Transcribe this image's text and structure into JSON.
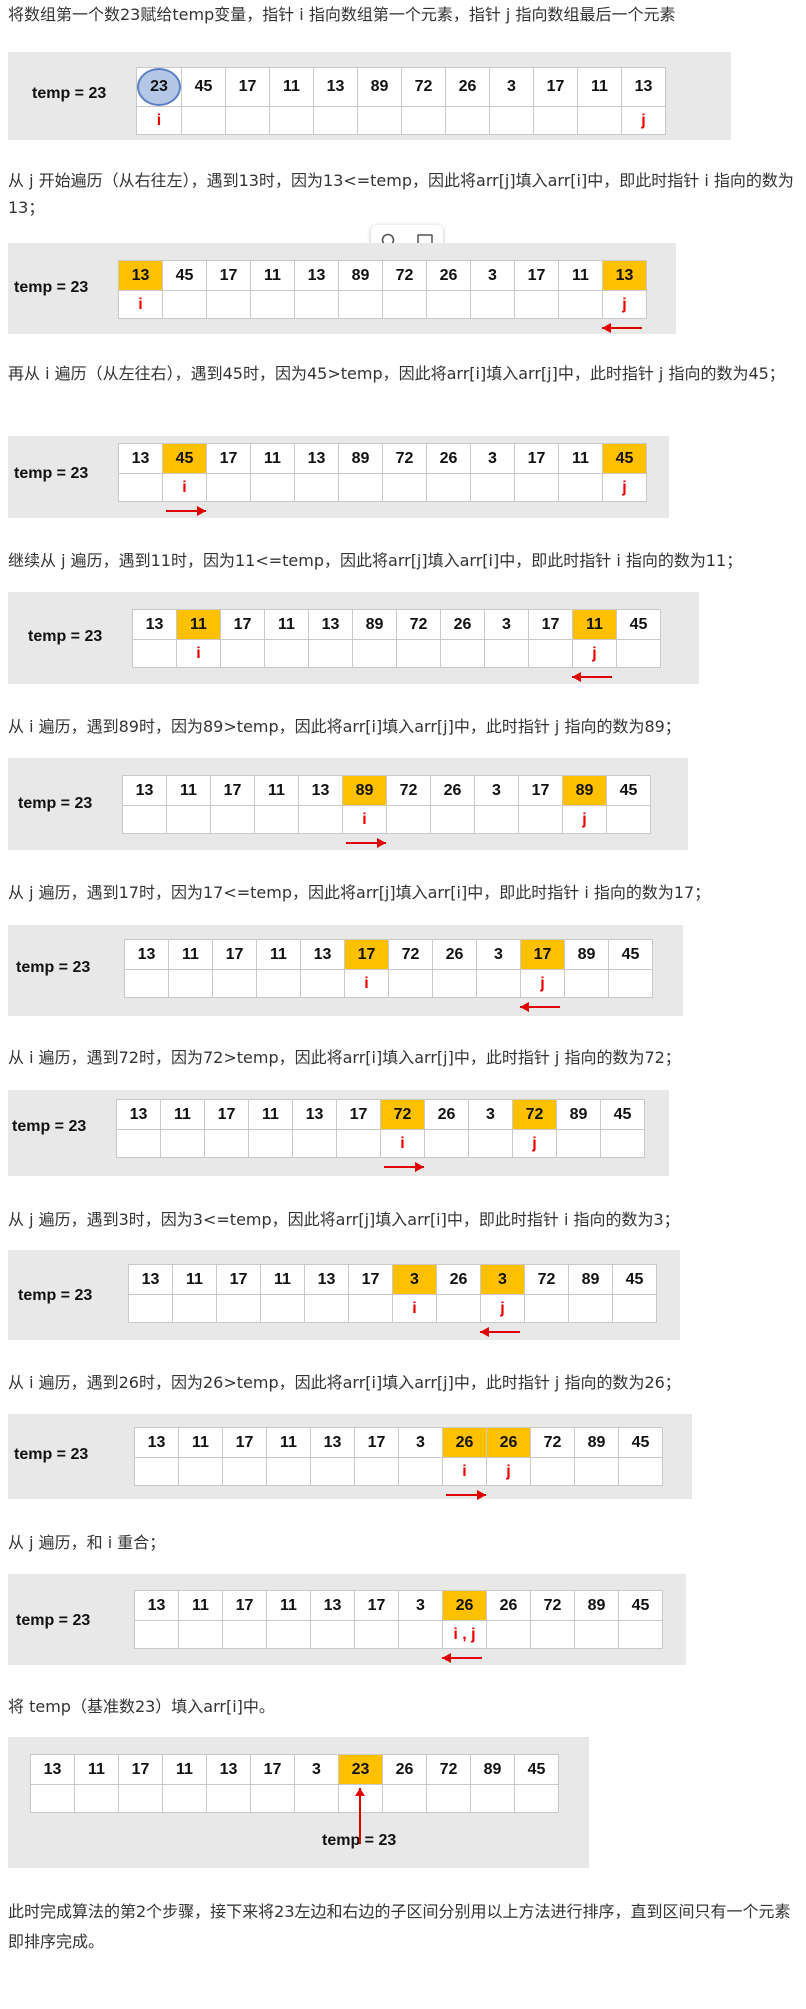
{
  "texts": {
    "t1": "将数组第一个数23赋给temp变量，指针 i 指向数组第一个元素，指针 j 指向数组最后一个元素",
    "t2": "从 j 开始遍历（从右往左），遇到13时，因为13<=temp，因此将arr[j]填入arr[i]中，即此时指针 i 指向的数为13；",
    "t3": "再从 i 遍历（从左往右），遇到45时，因为45>temp，因此将arr[i]填入arr[j]中，此时指针 j 指向的数为45；",
    "t4": "继续从 j 遍历，遇到11时，因为11<=temp，因此将arr[j]填入arr[i]中，即此时指针 i 指向的数为11；",
    "t5": "从 i 遍历，遇到89时，因为89>temp，因此将arr[i]填入arr[j]中，此时指针 j 指向的数为89；",
    "t6": "从 j 遍历，遇到17时，因为17<=temp，因此将arr[j]填入arr[i]中，即此时指针 i 指向的数为17；",
    "t7": "从 i 遍历，遇到72时，因为72>temp，因此将arr[i]填入arr[j]中，此时指针 j 指向的数为72；",
    "t8": "从 j 遍历，遇到3时，因为3<=temp，因此将arr[j]填入arr[i]中，即此时指针 i 指向的数为3；",
    "t9": "从 i 遍历，遇到26时，因为26>temp，因此将arr[i]填入arr[j]中，此时指针 j 指向的数为26；",
    "t10": "从 j 遍历，和 i 重合；",
    "t11": "将 temp（基准数23）填入arr[i]中。",
    "t12": "此时完成算法的第2个步骤，接下来将23左边和右边的子区间分别用以上方法进行排序，直到区间只有一个元素即排序完成。"
  },
  "temp_label": "temp = 23",
  "steps": [
    {
      "values": [
        "23",
        "45",
        "17",
        "11",
        "13",
        "89",
        "72",
        "26",
        "3",
        "17",
        "11",
        "13"
      ],
      "highlight": [],
      "circle": [
        0
      ],
      "pointers": [
        [
          "0",
          "i"
        ],
        [
          "11",
          "j"
        ]
      ],
      "arrow": ""
    },
    {
      "values": [
        "13",
        "45",
        "17",
        "11",
        "13",
        "89",
        "72",
        "26",
        "3",
        "17",
        "11",
        "13"
      ],
      "highlight": [
        0,
        11
      ],
      "circle": [],
      "pointers": [
        [
          "0",
          "i"
        ],
        [
          "11",
          "j"
        ]
      ],
      "arrow": "left"
    },
    {
      "values": [
        "13",
        "45",
        "17",
        "11",
        "13",
        "89",
        "72",
        "26",
        "3",
        "17",
        "11",
        "45"
      ],
      "highlight": [
        1,
        11
      ],
      "circle": [],
      "pointers": [
        [
          "1",
          "i"
        ],
        [
          "11",
          "j"
        ]
      ],
      "arrow": "right"
    },
    {
      "values": [
        "13",
        "11",
        "17",
        "11",
        "13",
        "89",
        "72",
        "26",
        "3",
        "17",
        "11",
        "45"
      ],
      "highlight": [
        1,
        10
      ],
      "circle": [],
      "pointers": [
        [
          "1",
          "i"
        ],
        [
          "10",
          "j"
        ]
      ],
      "arrow": "left"
    },
    {
      "values": [
        "13",
        "11",
        "17",
        "11",
        "13",
        "89",
        "72",
        "26",
        "3",
        "17",
        "89",
        "45"
      ],
      "highlight": [
        5,
        10
      ],
      "circle": [],
      "pointers": [
        [
          "5",
          "i"
        ],
        [
          "10",
          "j"
        ]
      ],
      "arrow": "right"
    },
    {
      "values": [
        "13",
        "11",
        "17",
        "11",
        "13",
        "17",
        "72",
        "26",
        "3",
        "17",
        "89",
        "45"
      ],
      "highlight": [
        5,
        9
      ],
      "circle": [],
      "pointers": [
        [
          "5",
          "i"
        ],
        [
          "9",
          "j"
        ]
      ],
      "arrow": "left"
    },
    {
      "values": [
        "13",
        "11",
        "17",
        "11",
        "13",
        "17",
        "72",
        "26",
        "3",
        "72",
        "89",
        "45"
      ],
      "highlight": [
        6,
        9
      ],
      "circle": [],
      "pointers": [
        [
          "6",
          "i"
        ],
        [
          "9",
          "j"
        ]
      ],
      "arrow": "right"
    },
    {
      "values": [
        "13",
        "11",
        "17",
        "11",
        "13",
        "17",
        "3",
        "26",
        "3",
        "72",
        "89",
        "45"
      ],
      "highlight": [
        6,
        8
      ],
      "circle": [],
      "pointers": [
        [
          "6",
          "i"
        ],
        [
          "8",
          "j"
        ]
      ],
      "arrow": "left"
    },
    {
      "values": [
        "13",
        "11",
        "17",
        "11",
        "13",
        "17",
        "3",
        "26",
        "26",
        "72",
        "89",
        "45"
      ],
      "highlight": [
        7,
        8
      ],
      "circle": [],
      "pointers": [
        [
          "7",
          "i"
        ],
        [
          "8",
          "j"
        ]
      ],
      "arrow": "right"
    },
    {
      "values": [
        "13",
        "11",
        "17",
        "11",
        "13",
        "17",
        "3",
        "26",
        "26",
        "72",
        "89",
        "45"
      ],
      "highlight": [
        7
      ],
      "circle": [],
      "pointers": [
        [
          "7",
          "i , j"
        ]
      ],
      "arrow": "left"
    },
    {
      "values": [
        "13",
        "11",
        "17",
        "11",
        "13",
        "17",
        "3",
        "23",
        "26",
        "72",
        "89",
        "45"
      ],
      "highlight": [
        7
      ],
      "circle": [],
      "pointers": [],
      "arrow": "up"
    }
  ],
  "colors": {
    "highlight": "#ffc000",
    "pointer": "#e00000",
    "panel": "#e8e8e8",
    "circle_fill": "#b4c7e7"
  },
  "icons": [
    "search-icon",
    "comment-icon"
  ]
}
